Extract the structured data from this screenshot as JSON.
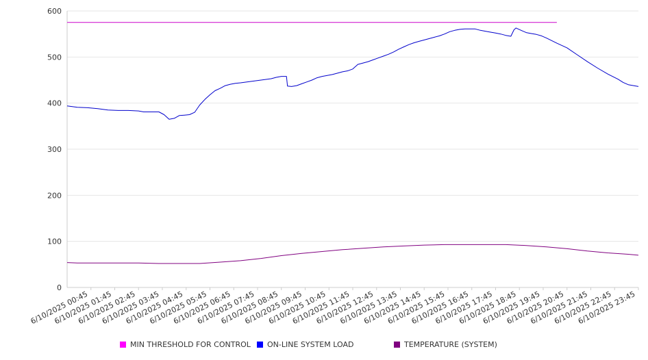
{
  "chart_data": {
    "type": "line",
    "ylim": [
      0,
      600
    ],
    "y_ticks": [
      "0",
      "100",
      "200",
      "300",
      "400",
      "500",
      "600"
    ],
    "grid": "horizontal",
    "legend_position": "bottom",
    "categories": [
      "6/10/2025 00:45",
      "6/10/2025 01:45",
      "6/10/2025 02:45",
      "6/10/2025 03:45",
      "6/10/2025 04:45",
      "6/10/2025 05:45",
      "6/10/2025 06:45",
      "6/10/2025 07:45",
      "6/10/2025 08:45",
      "6/10/2025 09:45",
      "6/10/2025 10:45",
      "6/10/2025 11:45",
      "6/10/2025 12:45",
      "6/10/2025 13:45",
      "6/10/2025 14:45",
      "6/10/2025 15:45",
      "6/10/2025 16:45",
      "6/10/2025 17:45",
      "6/10/2025 18:45",
      "6/10/2025 19:45",
      "6/10/2025 20:45",
      "6/10/2025 21:45",
      "6/10/2025 22:45",
      "6/10/2025 23:45"
    ],
    "x_range_hours": [
      0.5,
      24.5
    ],
    "series": [
      {
        "name": "MIN THRESHOLD FOR CONTROL",
        "color": "#cc00cc",
        "points": [
          [
            0.5,
            575
          ],
          [
            24.5,
            575
          ]
        ]
      },
      {
        "name": "ON-LINE SYSTEM LOAD",
        "color": "#0000cc",
        "points": [
          [
            0.5,
            394
          ],
          [
            1.0,
            391
          ],
          [
            1.5,
            390
          ],
          [
            2.0,
            388
          ],
          [
            2.5,
            385
          ],
          [
            3.0,
            384
          ],
          [
            3.5,
            384
          ],
          [
            4.0,
            383
          ],
          [
            4.25,
            381
          ],
          [
            4.5,
            381
          ],
          [
            5.0,
            381
          ],
          [
            5.25,
            375
          ],
          [
            5.5,
            365
          ],
          [
            5.75,
            367
          ],
          [
            6.0,
            373
          ],
          [
            6.25,
            374
          ],
          [
            6.5,
            375
          ],
          [
            6.75,
            380
          ],
          [
            7.0,
            396
          ],
          [
            7.25,
            408
          ],
          [
            7.5,
            418
          ],
          [
            7.75,
            427
          ],
          [
            8.0,
            432
          ],
          [
            8.25,
            438
          ],
          [
            8.5,
            441
          ],
          [
            8.75,
            443
          ],
          [
            9.0,
            444
          ],
          [
            9.5,
            447
          ],
          [
            10.0,
            450
          ],
          [
            10.5,
            453
          ],
          [
            10.75,
            456
          ],
          [
            11.0,
            458
          ],
          [
            11.25,
            458
          ],
          [
            11.3,
            437
          ],
          [
            11.5,
            436
          ],
          [
            11.75,
            438
          ],
          [
            12.0,
            442
          ],
          [
            12.25,
            446
          ],
          [
            12.5,
            450
          ],
          [
            12.75,
            455
          ],
          [
            13.0,
            458
          ],
          [
            13.25,
            460
          ],
          [
            13.5,
            462
          ],
          [
            13.75,
            465
          ],
          [
            14.0,
            468
          ],
          [
            14.25,
            470
          ],
          [
            14.5,
            474
          ],
          [
            14.75,
            484
          ],
          [
            15.0,
            487
          ],
          [
            15.25,
            490
          ],
          [
            15.5,
            494
          ],
          [
            15.75,
            498
          ],
          [
            16.0,
            502
          ],
          [
            16.25,
            506
          ],
          [
            16.5,
            511
          ],
          [
            16.75,
            517
          ],
          [
            17.0,
            522
          ],
          [
            17.25,
            527
          ],
          [
            17.5,
            531
          ],
          [
            17.75,
            534
          ],
          [
            18.0,
            537
          ],
          [
            18.25,
            540
          ],
          [
            18.5,
            543
          ],
          [
            18.75,
            546
          ],
          [
            19.0,
            550
          ],
          [
            19.25,
            555
          ],
          [
            19.5,
            558
          ],
          [
            19.75,
            560
          ],
          [
            20.0,
            561
          ],
          [
            20.25,
            561
          ],
          [
            20.5,
            561
          ],
          [
            20.75,
            558
          ],
          [
            21.0,
            556
          ],
          [
            21.25,
            554
          ],
          [
            21.5,
            552
          ],
          [
            21.75,
            550
          ],
          [
            22.0,
            547
          ],
          [
            22.25,
            545
          ],
          [
            22.4,
            559
          ],
          [
            22.5,
            563
          ],
          [
            22.75,
            558
          ],
          [
            23.0,
            553
          ],
          [
            23.25,
            551
          ],
          [
            23.5,
            549
          ],
          [
            23.75,
            546
          ],
          [
            24.0,
            541
          ],
          [
            24.5,
            530
          ],
          [
            25.0,
            520
          ],
          [
            25.5,
            505
          ],
          [
            26.0,
            490
          ],
          [
            26.5,
            476
          ],
          [
            27.0,
            463
          ],
          [
            27.5,
            452
          ],
          [
            27.75,
            445
          ],
          [
            28.0,
            440
          ],
          [
            28.5,
            436
          ]
        ]
      },
      {
        "name": "TEMPERATURE (SYSTEM)",
        "color": "#800080",
        "points": [
          [
            0.5,
            54
          ],
          [
            1.0,
            53
          ],
          [
            2.0,
            53
          ],
          [
            3.0,
            53
          ],
          [
            4.0,
            53
          ],
          [
            5.0,
            52
          ],
          [
            6.0,
            52
          ],
          [
            7.0,
            52
          ],
          [
            8.0,
            55
          ],
          [
            9.0,
            58
          ],
          [
            10.0,
            63
          ],
          [
            11.0,
            69
          ],
          [
            12.0,
            74
          ],
          [
            13.0,
            78
          ],
          [
            14.0,
            82
          ],
          [
            15.0,
            85
          ],
          [
            16.0,
            88
          ],
          [
            17.0,
            90
          ],
          [
            18.0,
            92
          ],
          [
            19.0,
            93
          ],
          [
            20.0,
            93
          ],
          [
            21.0,
            93
          ],
          [
            22.0,
            93
          ],
          [
            23.0,
            91
          ],
          [
            24.0,
            88
          ],
          [
            25.0,
            84
          ],
          [
            26.0,
            79
          ],
          [
            27.0,
            75
          ],
          [
            28.0,
            72
          ],
          [
            28.5,
            70
          ]
        ]
      }
    ]
  }
}
